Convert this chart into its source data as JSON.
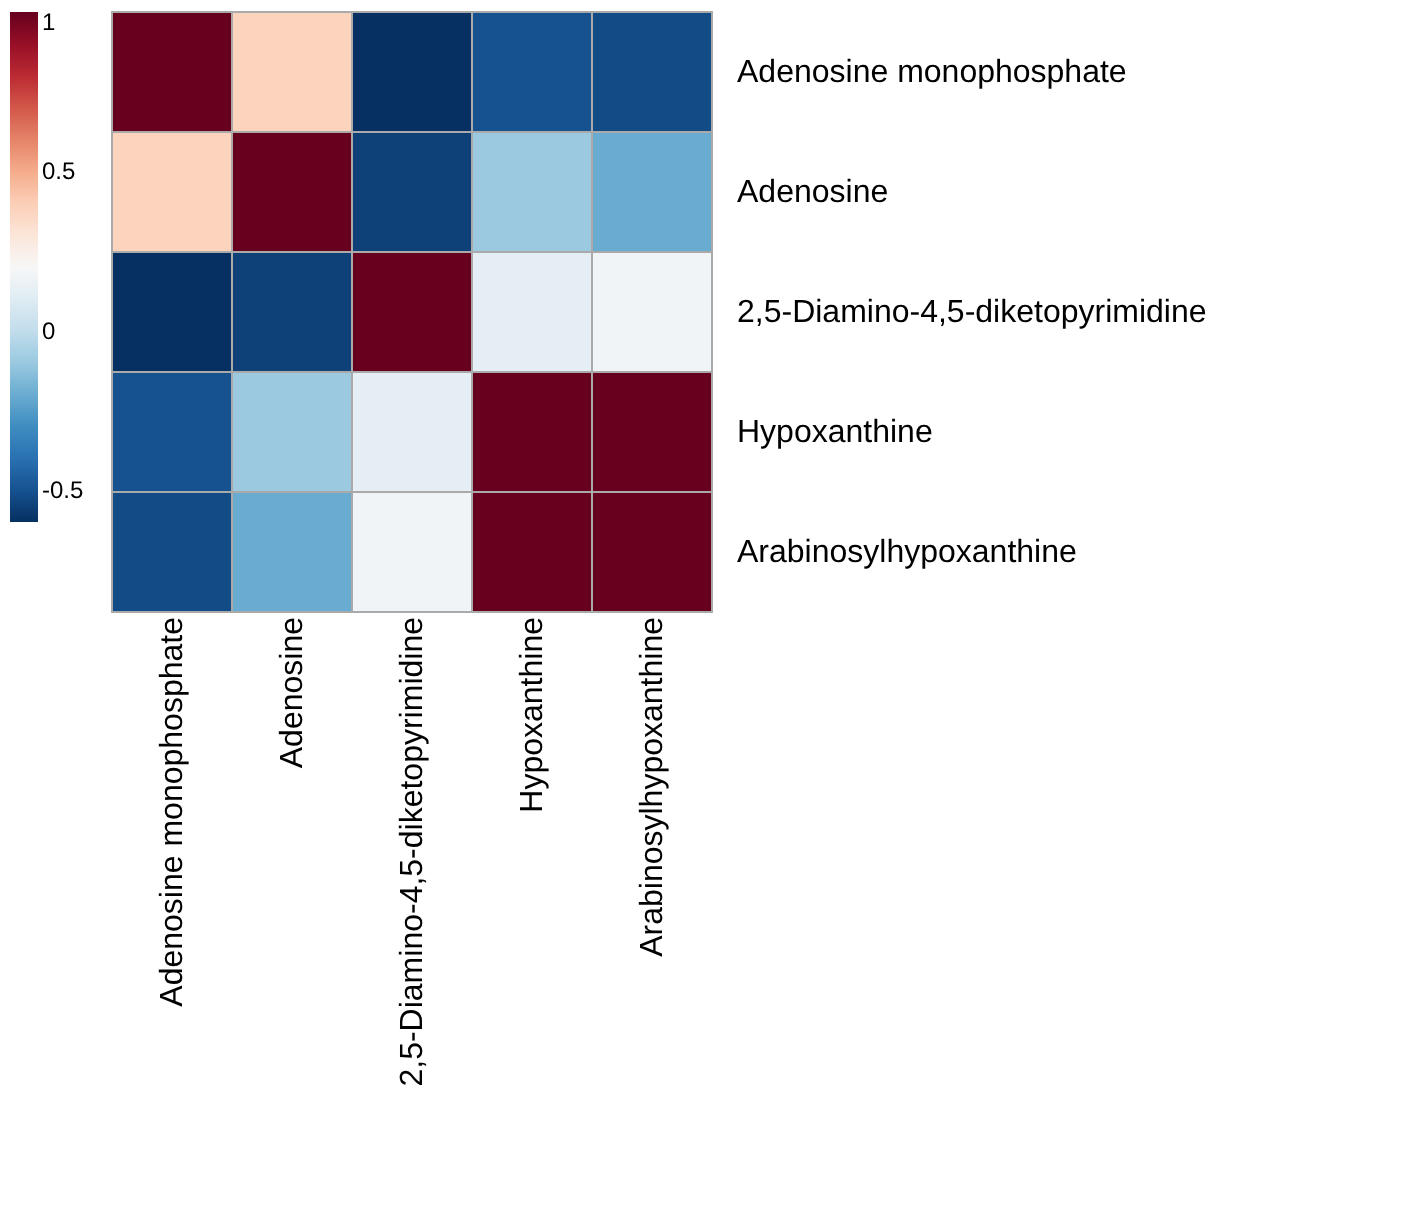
{
  "chart_data": {
    "type": "heatmap",
    "categories": [
      "Adenosine monophosphate",
      "Adenosine",
      "2,5-Diamino-4,5-diketopyrimidine",
      "Hypoxanthine",
      "Arabinosylhypoxanthine"
    ],
    "y_categories": [
      "Adenosine monophosphate",
      "Adenosine",
      "2,5-Diamino-4,5-diketopyrimidine",
      "Hypoxanthine",
      "Arabinosylhypoxanthine"
    ],
    "cells": [
      [
        1,
        0.38,
        -0.6,
        -0.5,
        -0.52
      ],
      [
        0.38,
        1,
        -0.55,
        -0.1,
        -0.2
      ],
      [
        -0.6,
        -0.55,
        1,
        0.12,
        0.17
      ],
      [
        -0.5,
        -0.1,
        0.12,
        1,
        1
      ],
      [
        -0.52,
        -0.2,
        0.17,
        1,
        1
      ]
    ],
    "clim": [
      -0.6,
      1
    ],
    "cticks": [
      -0.5,
      0,
      0.5,
      1
    ]
  }
}
